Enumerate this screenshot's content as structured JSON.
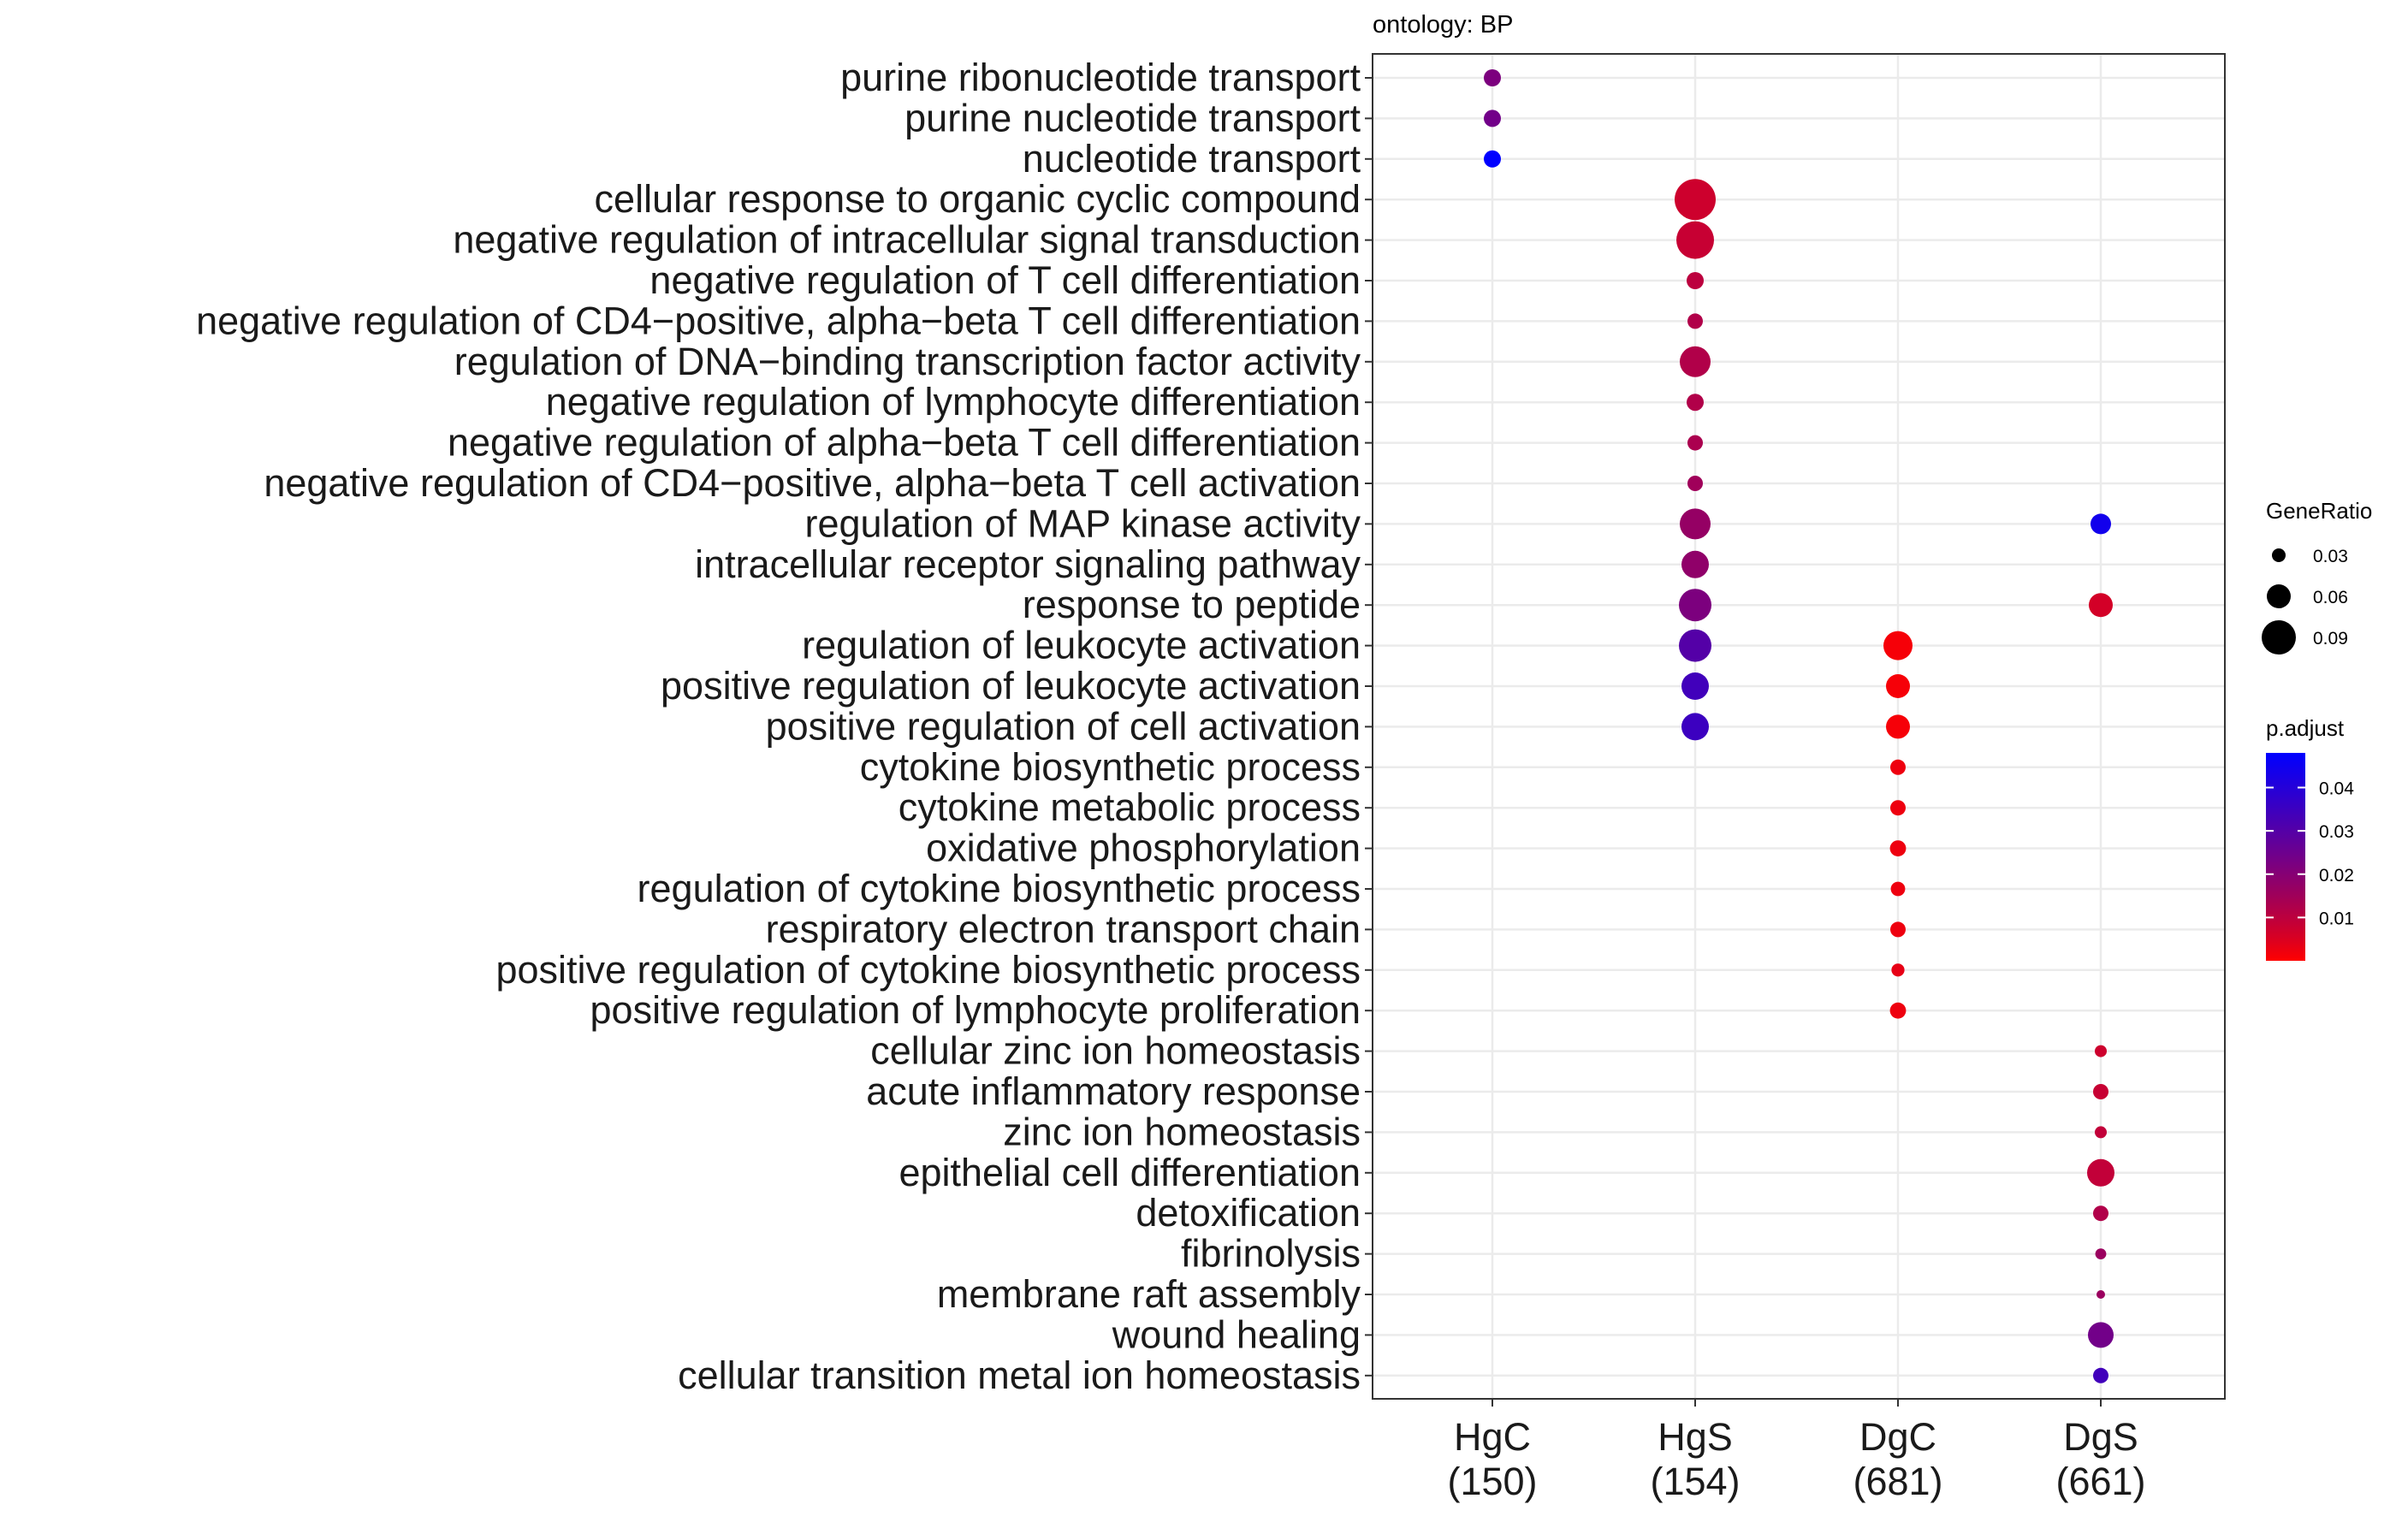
{
  "chart_data": {
    "type": "scatter",
    "title": "ontology: BP",
    "xlabel": "",
    "ylabel": "",
    "grid": true,
    "legend_placement": "right",
    "groups": [
      {
        "name": "HgC",
        "count": "(150)"
      },
      {
        "name": "HgS",
        "count": "(154)"
      },
      {
        "name": "DgC",
        "count": "(681)"
      },
      {
        "name": "DgS",
        "count": "(661)"
      }
    ],
    "terms": [
      "purine ribonucleotide transport",
      "purine nucleotide transport",
      "nucleotide transport",
      "cellular response to organic cyclic compound",
      "negative regulation of intracellular signal transduction",
      "negative regulation of T cell differentiation",
      "negative regulation of CD4−positive, alpha−beta T cell differentiation",
      "regulation of DNA−binding transcription factor activity",
      "negative regulation of lymphocyte differentiation",
      "negative regulation of alpha−beta T cell differentiation",
      "negative regulation of CD4−positive, alpha−beta T cell activation",
      "regulation of MAP kinase activity",
      "intracellular receptor signaling pathway",
      "response to peptide",
      "regulation of leukocyte activation",
      "positive regulation of leukocyte activation",
      "positive regulation of cell activation",
      "cytokine biosynthetic process",
      "cytokine metabolic process",
      "oxidative phosphorylation",
      "regulation of cytokine biosynthetic process",
      "respiratory electron transport chain",
      "positive regulation of cytokine biosynthetic process",
      "positive regulation of lymphocyte proliferation",
      "cellular zinc ion homeostasis",
      "acute inflammatory response",
      "zinc ion homeostasis",
      "epithelial cell differentiation",
      "detoxification",
      "fibrinolysis",
      "membrane raft assembly",
      "wound healing",
      "cellular transition metal ion homeostasis"
    ],
    "points": [
      {
        "group": "HgC",
        "term": "purine ribonucleotide transport",
        "gene_ratio": 0.03,
        "p_adjust": 0.022
      },
      {
        "group": "HgC",
        "term": "purine nucleotide transport",
        "gene_ratio": 0.03,
        "p_adjust": 0.024
      },
      {
        "group": "HgC",
        "term": "nucleotide transport",
        "gene_ratio": 0.03,
        "p_adjust": 0.048
      },
      {
        "group": "HgS",
        "term": "cellular response to organic cyclic compound",
        "gene_ratio": 0.1,
        "p_adjust": 0.007
      },
      {
        "group": "HgS",
        "term": "negative regulation of intracellular signal transduction",
        "gene_ratio": 0.09,
        "p_adjust": 0.008
      },
      {
        "group": "HgS",
        "term": "negative regulation of T cell differentiation",
        "gene_ratio": 0.03,
        "p_adjust": 0.01
      },
      {
        "group": "HgS",
        "term": "negative regulation of CD4−positive, alpha−beta T cell differentiation",
        "gene_ratio": 0.025,
        "p_adjust": 0.012
      },
      {
        "group": "HgS",
        "term": "regulation of DNA−binding transcription factor activity",
        "gene_ratio": 0.07,
        "p_adjust": 0.012
      },
      {
        "group": "HgS",
        "term": "negative regulation of lymphocyte differentiation",
        "gene_ratio": 0.03,
        "p_adjust": 0.012
      },
      {
        "group": "HgS",
        "term": "negative regulation of alpha−beta T cell differentiation",
        "gene_ratio": 0.025,
        "p_adjust": 0.013
      },
      {
        "group": "HgS",
        "term": "negative regulation of CD4−positive, alpha−beta T cell activation",
        "gene_ratio": 0.025,
        "p_adjust": 0.015
      },
      {
        "group": "HgS",
        "term": "regulation of MAP kinase activity",
        "gene_ratio": 0.07,
        "p_adjust": 0.017
      },
      {
        "group": "HgS",
        "term": "intracellular receptor signaling pathway",
        "gene_ratio": 0.06,
        "p_adjust": 0.018
      },
      {
        "group": "HgS",
        "term": "response to peptide",
        "gene_ratio": 0.075,
        "p_adjust": 0.022
      },
      {
        "group": "HgS",
        "term": "regulation of leukocyte activation",
        "gene_ratio": 0.075,
        "p_adjust": 0.03
      },
      {
        "group": "HgS",
        "term": "positive regulation of leukocyte activation",
        "gene_ratio": 0.06,
        "p_adjust": 0.034
      },
      {
        "group": "HgS",
        "term": "positive regulation of cell activation",
        "gene_ratio": 0.06,
        "p_adjust": 0.035
      },
      {
        "group": "DgC",
        "term": "regulation of leukocyte activation",
        "gene_ratio": 0.065,
        "p_adjust": 0.001
      },
      {
        "group": "DgC",
        "term": "positive regulation of leukocyte activation",
        "gene_ratio": 0.05,
        "p_adjust": 0.001
      },
      {
        "group": "DgC",
        "term": "positive regulation of cell activation",
        "gene_ratio": 0.05,
        "p_adjust": 0.001
      },
      {
        "group": "DgC",
        "term": "cytokine biosynthetic process",
        "gene_ratio": 0.025,
        "p_adjust": 0.002
      },
      {
        "group": "DgC",
        "term": "cytokine metabolic process",
        "gene_ratio": 0.025,
        "p_adjust": 0.002
      },
      {
        "group": "DgC",
        "term": "oxidative phosphorylation",
        "gene_ratio": 0.027,
        "p_adjust": 0.002
      },
      {
        "group": "DgC",
        "term": "regulation of cytokine biosynthetic process",
        "gene_ratio": 0.022,
        "p_adjust": 0.002
      },
      {
        "group": "DgC",
        "term": "respiratory electron transport chain",
        "gene_ratio": 0.025,
        "p_adjust": 0.002
      },
      {
        "group": "DgC",
        "term": "positive regulation of cytokine biosynthetic process",
        "gene_ratio": 0.018,
        "p_adjust": 0.003
      },
      {
        "group": "DgC",
        "term": "positive regulation of lymphocyte proliferation",
        "gene_ratio": 0.027,
        "p_adjust": 0.002
      },
      {
        "group": "DgS",
        "term": "regulation of MAP kinase activity",
        "gene_ratio": 0.04,
        "p_adjust": 0.044
      },
      {
        "group": "DgS",
        "term": "response to peptide",
        "gene_ratio": 0.05,
        "p_adjust": 0.006
      },
      {
        "group": "DgS",
        "term": "cellular zinc ion homeostasis",
        "gene_ratio": 0.015,
        "p_adjust": 0.007
      },
      {
        "group": "DgS",
        "term": "acute inflammatory response",
        "gene_ratio": 0.025,
        "p_adjust": 0.008
      },
      {
        "group": "DgS",
        "term": "zinc ion homeostasis",
        "gene_ratio": 0.015,
        "p_adjust": 0.009
      },
      {
        "group": "DgS",
        "term": "epithelial cell differentiation",
        "gene_ratio": 0.06,
        "p_adjust": 0.009
      },
      {
        "group": "DgS",
        "term": "detoxification",
        "gene_ratio": 0.025,
        "p_adjust": 0.012
      },
      {
        "group": "DgS",
        "term": "fibrinolysis",
        "gene_ratio": 0.012,
        "p_adjust": 0.016
      },
      {
        "group": "DgS",
        "term": "membrane raft assembly",
        "gene_ratio": 0.005,
        "p_adjust": 0.016
      },
      {
        "group": "DgS",
        "term": "wound healing",
        "gene_ratio": 0.055,
        "p_adjust": 0.024
      },
      {
        "group": "DgS",
        "term": "cellular transition metal ion homeostasis",
        "gene_ratio": 0.025,
        "p_adjust": 0.034
      }
    ],
    "size_legend": {
      "title": "GeneRatio",
      "values": [
        0.03,
        0.06,
        0.09
      ],
      "labels": [
        "0.03",
        "0.06",
        "0.09"
      ]
    },
    "color_legend": {
      "title": "p.adjust",
      "min": 0.0,
      "max": 0.048,
      "low_color": "#ff0000",
      "high_color": "#0000ff",
      "ticks": [
        0.01,
        0.02,
        0.03,
        0.04
      ],
      "tick_labels": [
        "0.01",
        "0.02",
        "0.03",
        "0.04"
      ]
    }
  }
}
